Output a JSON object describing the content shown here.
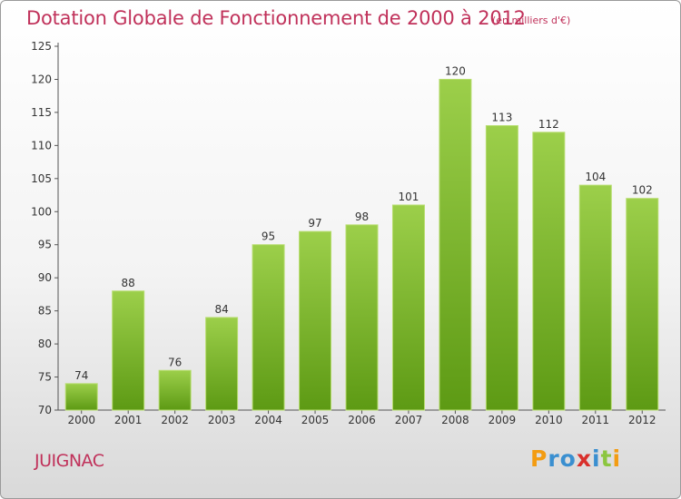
{
  "header": {
    "title": "Dotation Globale de Fonctionnement de 2000 à 2012",
    "unit": "(en milliers d'€)"
  },
  "footer": {
    "commune": "JUIGNAC",
    "logo_letters": [
      "P",
      "r",
      "o",
      "x",
      "i",
      "t",
      "i"
    ],
    "logo_colors": [
      "#f39c12",
      "#3a8fd0",
      "#3a8fd0",
      "#d9302c",
      "#3a8fd0",
      "#8cc63f",
      "#f39c12"
    ]
  },
  "chart_data": {
    "type": "bar",
    "categories": [
      "2000",
      "2001",
      "2002",
      "2003",
      "2004",
      "2005",
      "2006",
      "2007",
      "2008",
      "2009",
      "2010",
      "2011",
      "2012"
    ],
    "values": [
      74,
      88,
      76,
      84,
      95,
      97,
      98,
      101,
      120,
      113,
      112,
      104,
      102
    ],
    "data_labels": [
      "74",
      "88",
      "76",
      "84",
      "95",
      "97",
      "98",
      "101",
      "120",
      "113",
      "112",
      "104",
      "102"
    ],
    "yticks": [
      "70",
      "75",
      "80",
      "85",
      "90",
      "95",
      "100",
      "105",
      "110",
      "115",
      "120",
      "125"
    ],
    "ylim": [
      70,
      125
    ],
    "grid": false,
    "bar_color_top": "#9ccf4a",
    "bar_color_bottom": "#5d9a14"
  }
}
